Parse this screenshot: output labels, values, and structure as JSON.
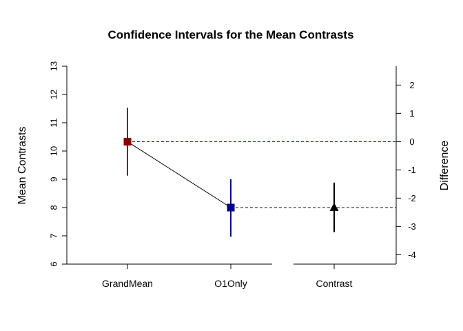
{
  "chart_data": {
    "type": "scatter",
    "title": "Confidence Intervals for the Mean Contrasts",
    "ylabel_left": "Mean Contrasts",
    "ylabel_right": "Difference",
    "categories": [
      "GrandMean",
      "O1Only",
      "Contrast"
    ],
    "left_axis": {
      "ylim": [
        6,
        13
      ],
      "ticks": [
        "6",
        "7",
        "8",
        "9",
        "10",
        "11",
        "12",
        "13"
      ]
    },
    "right_axis": {
      "ylim": [
        -4.333,
        2.667
      ],
      "ticks": [
        "-4",
        "-3",
        "-2",
        "-1",
        "0",
        "1",
        "2"
      ]
    },
    "means": [
      {
        "category": "GrandMean",
        "estimate": 10.33,
        "lower": 9.13,
        "upper": 11.53,
        "color": "#8b0000",
        "marker": "square"
      },
      {
        "category": "O1Only",
        "estimate": 8.0,
        "lower": 6.97,
        "upper": 9.0,
        "color": "#00008b",
        "marker": "square"
      }
    ],
    "contrast": {
      "category": "Contrast",
      "estimate": -2.33,
      "lower": -3.2,
      "upper": -1.45,
      "color": "#000000",
      "marker": "triangle"
    },
    "reference_lines": [
      {
        "value": 10.33,
        "color": "#8b0000",
        "style": "dashed"
      },
      {
        "value": 8.0,
        "color": "#00008b",
        "style": "dashed"
      }
    ],
    "grid": false,
    "legend": "none"
  }
}
